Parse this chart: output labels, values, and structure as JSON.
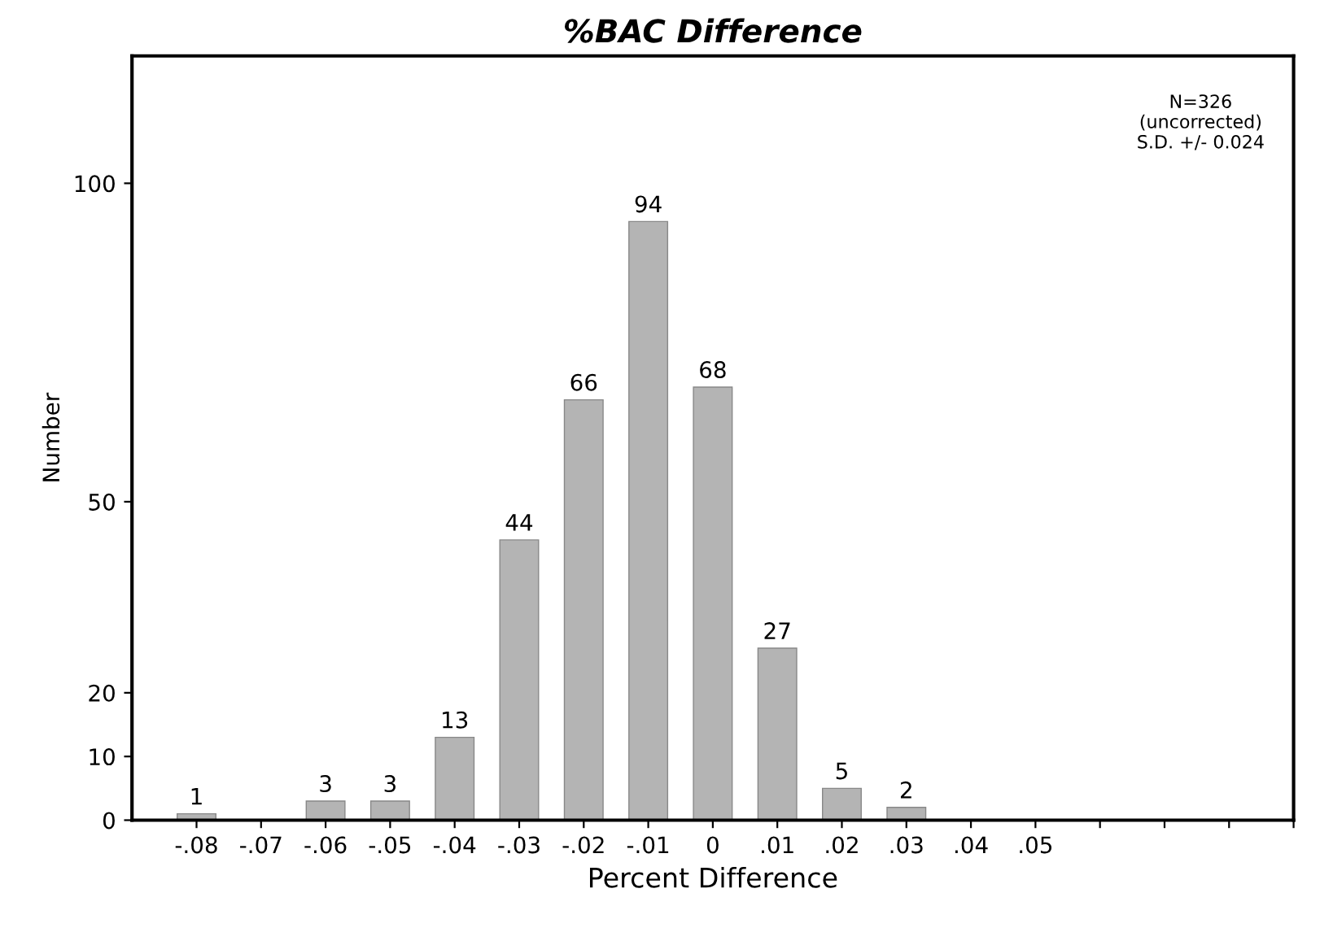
{
  "chart_data": {
    "type": "bar",
    "title": "%BAC Difference",
    "xlabel": "Percent Difference",
    "ylabel": "Number",
    "x": [
      -0.08,
      -0.06,
      -0.05,
      -0.04,
      -0.03,
      -0.02,
      -0.01,
      0,
      0.01,
      0.02,
      0.03
    ],
    "values": [
      1,
      3,
      3,
      13,
      44,
      66,
      94,
      68,
      27,
      5,
      2
    ],
    "color": "#b4b4b4",
    "data_labels": true,
    "xlim": [
      -0.09,
      0.09
    ],
    "xticks": [
      {
        "value": -0.08,
        "label": "-.08"
      },
      {
        "value": -0.07,
        "label": "-.07"
      },
      {
        "value": -0.06,
        "label": "-.06"
      },
      {
        "value": -0.05,
        "label": "-.05"
      },
      {
        "value": -0.04,
        "label": "-.04"
      },
      {
        "value": -0.03,
        "label": "-.03"
      },
      {
        "value": -0.02,
        "label": "-.02"
      },
      {
        "value": -0.01,
        "label": "-.01"
      },
      0,
      {
        "value": 0.01,
        "label": ".01"
      },
      {
        "value": 0.02,
        "label": ".02"
      },
      {
        "value": 0.03,
        "label": ".03"
      },
      {
        "value": 0.04,
        "label": ".04"
      },
      {
        "value": 0.05,
        "label": ".05"
      },
      {
        "value": 0.06,
        "label": null
      },
      {
        "value": 0.07,
        "label": null
      },
      {
        "value": 0.08,
        "label": null
      },
      {
        "value": 0.09,
        "label": null
      }
    ],
    "ylim": [
      0,
      120
    ],
    "yticks": [
      0,
      10,
      20,
      50,
      100
    ],
    "annotations": [
      "N=326\n(uncorrected)\nS.D. +/- 0.024"
    ],
    "grid": false,
    "legend": false
  }
}
